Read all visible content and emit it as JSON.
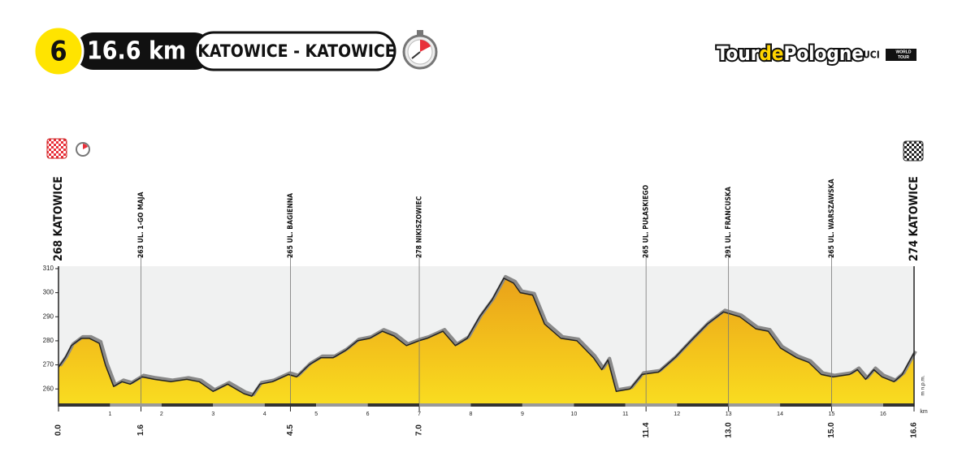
{
  "header": {
    "stage": "6",
    "distance": "16.6 km",
    "route": "KATOWICE - KATOWICE"
  },
  "logo": {
    "parts": [
      "Tour",
      "de",
      "Pologne"
    ],
    "uci": "UCI",
    "badge": [
      "WORLD",
      "TOUR"
    ]
  },
  "chart_data": {
    "type": "area",
    "x": [
      0,
      0.13,
      0.25,
      0.44,
      0.6,
      0.79,
      0.91,
      1.07,
      1.23,
      1.39,
      1.62,
      1.86,
      2.18,
      2.49,
      2.73,
      3.0,
      3.28,
      3.6,
      3.75,
      3.91,
      4.15,
      4.46,
      4.62,
      4.86,
      5.09,
      5.33,
      5.57,
      5.8,
      6.04,
      6.28,
      6.51,
      6.75,
      6.99,
      7.15,
      7.46,
      7.7,
      7.93,
      8.17,
      8.41,
      8.64,
      8.83,
      8.96,
      9.2,
      9.43,
      9.75,
      10.06,
      10.38,
      10.54,
      10.66,
      10.82,
      11.09,
      11.32,
      11.64,
      11.96,
      12.27,
      12.59,
      12.9,
      13.22,
      13.53,
      13.77,
      14.01,
      14.32,
      14.56,
      14.8,
      15.03,
      15.35,
      15.5,
      15.66,
      15.82,
      15.98,
      16.21,
      16.37,
      16.6
    ],
    "values": [
      269,
      273,
      278,
      281,
      281,
      279,
      270,
      261,
      263,
      262,
      265,
      264,
      263,
      264,
      263,
      259,
      262,
      258,
      257,
      262,
      263,
      266,
      265,
      270,
      273,
      273,
      276,
      280,
      281,
      284,
      282,
      278,
      280,
      281,
      284,
      278,
      281,
      290,
      297,
      306,
      304,
      300,
      299,
      287,
      281,
      280,
      273,
      268,
      272,
      259,
      260,
      266,
      267,
      273,
      280,
      287,
      292,
      290,
      285,
      284,
      277,
      273,
      271,
      266,
      265,
      266,
      268,
      264,
      268,
      265,
      263,
      266,
      275
    ],
    "color": "#f5c518",
    "xlim": [
      0,
      16.6
    ],
    "ylim": [
      254,
      311
    ],
    "yticks": [
      260,
      270,
      280,
      290,
      300,
      310
    ],
    "xticks": [
      {
        "value": 0,
        "label": "0.0"
      },
      1.6,
      4.5,
      {
        "value": 7,
        "label": "7.0"
      },
      11.4,
      {
        "value": 13,
        "label": "13.0"
      },
      {
        "value": 15,
        "label": "15.0"
      },
      16.6
    ],
    "waypoint_labels": [
      "268 KATOWICE",
      "263 UL. 1-GO MAJA",
      "265 UL. BAGIENNA",
      "278 NIKISZOWIEC",
      "265 UL. PUŁASKIEGO",
      "291 UL. FRANCUSKA",
      "265 UL. WARSZAWSKA",
      "274 KATOWICE"
    ],
    "minor_xticks": [
      1,
      2,
      3,
      4,
      5,
      6,
      7,
      8,
      9,
      10,
      11,
      12,
      13,
      14,
      15,
      16
    ],
    "ylabel": "m n.p.m.",
    "xlabel": "km"
  }
}
